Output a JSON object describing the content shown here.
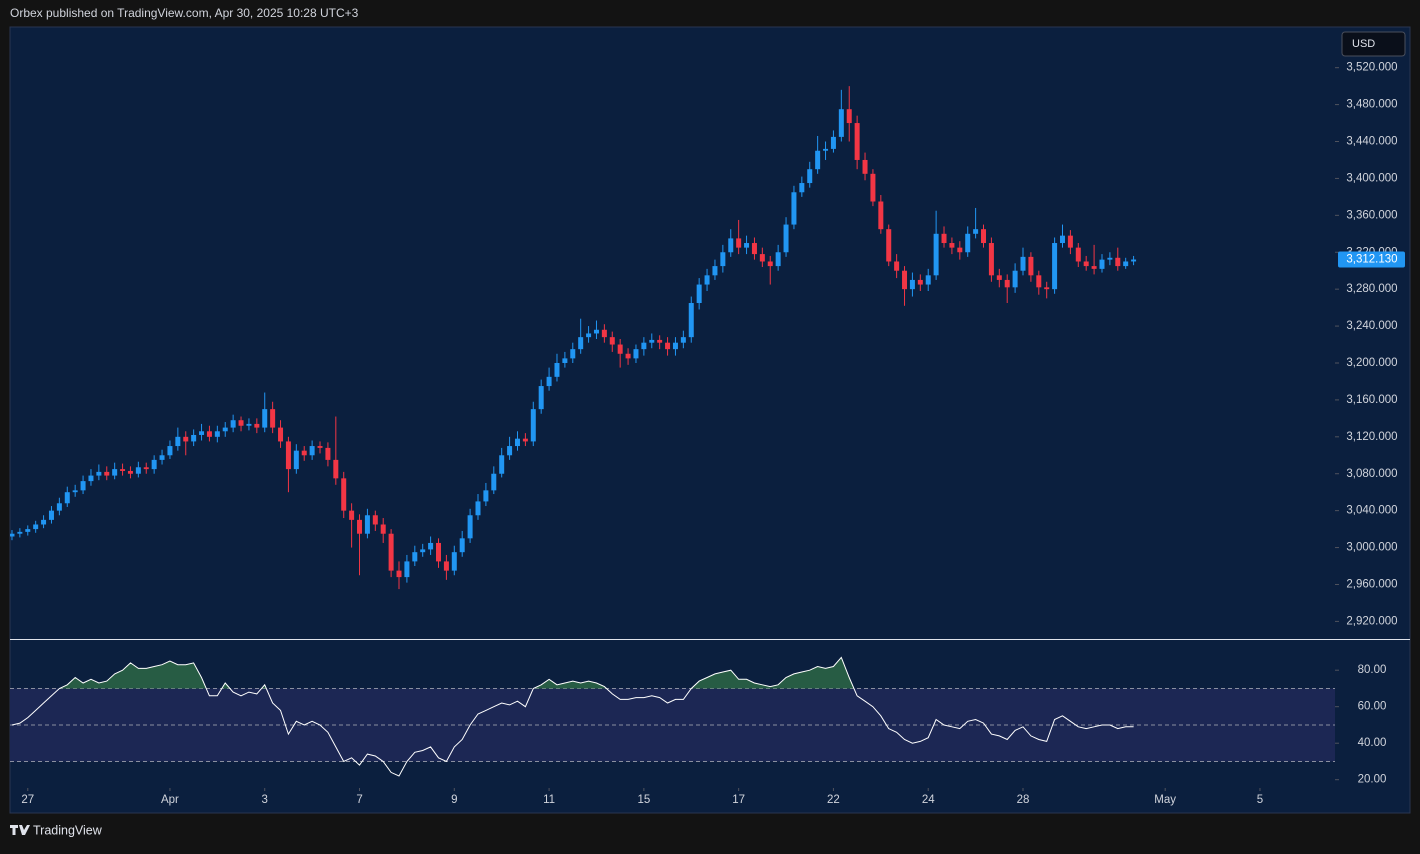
{
  "header": {
    "publisher_line": "Orbex published on TradingView.com, Apr 30, 2025 10:28 UTC+3",
    "currency": "USD",
    "brand": "TradingView"
  },
  "chart_data": [
    {
      "type": "candlestick",
      "up_color": "#2196f3",
      "down_color": "#f23645",
      "ylim": [
        2902,
        3563
      ],
      "yticks": [
        {
          "value": 2920,
          "label": "2,920.000"
        },
        {
          "value": 2960,
          "label": "2,960.000"
        },
        {
          "value": 3000,
          "label": "3,000.000"
        },
        {
          "value": 3040,
          "label": "3,040.000"
        },
        {
          "value": 3080,
          "label": "3,080.000"
        },
        {
          "value": 3120,
          "label": "3,120.000"
        },
        {
          "value": 3160,
          "label": "3,160.000"
        },
        {
          "value": 3200,
          "label": "3,200.000"
        },
        {
          "value": 3240,
          "label": "3,240.000"
        },
        {
          "value": 3280,
          "label": "3,280.000"
        },
        {
          "value": 3320,
          "label": "3,320.000"
        },
        {
          "value": 3360,
          "label": "3,360.000"
        },
        {
          "value": 3400,
          "label": "3,400.000"
        },
        {
          "value": 3440,
          "label": "3,440.000"
        },
        {
          "value": 3480,
          "label": "3,480.000"
        },
        {
          "value": 3520,
          "label": "3,520.000"
        }
      ],
      "xlim": [
        -0.25,
        167.5
      ],
      "xticks": [
        {
          "value": 2,
          "label": "27"
        },
        {
          "value": 20,
          "label": "Apr"
        },
        {
          "value": 32,
          "label": "3"
        },
        {
          "value": 44,
          "label": "7"
        },
        {
          "value": 56,
          "label": "9"
        },
        {
          "value": 68,
          "label": "11"
        },
        {
          "value": 80,
          "label": "15"
        },
        {
          "value": 92,
          "label": "17"
        },
        {
          "value": 104,
          "label": "22"
        },
        {
          "value": 116,
          "label": "24"
        },
        {
          "value": 128,
          "label": "28"
        },
        {
          "value": 146,
          "label": "May"
        },
        {
          "value": 158,
          "label": "5"
        }
      ],
      "last_price": {
        "value": 3312.13,
        "label": "3,312.130"
      },
      "open": [
        3012,
        3015,
        3017,
        3020,
        3025,
        3030,
        3040,
        3048,
        3060,
        3062,
        3072,
        3078,
        3082,
        3078,
        3085,
        3083,
        3080,
        3087,
        3085,
        3095,
        3100,
        3110,
        3120,
        3115,
        3122,
        3126,
        3120,
        3126,
        3130,
        3138,
        3132,
        3134,
        3130,
        3150,
        3130,
        3115,
        3085,
        3105,
        3100,
        3110,
        3108,
        3095,
        3075,
        3040,
        3030,
        3015,
        3035,
        3025,
        3015,
        2975,
        2968,
        2985,
        2995,
        2998,
        3005,
        2985,
        2975,
        2995,
        3010,
        3035,
        3050,
        3062,
        3080,
        3100,
        3110,
        3118,
        3115,
        3150,
        3175,
        3185,
        3200,
        3205,
        3215,
        3228,
        3232,
        3236,
        3228,
        3220,
        3210,
        3205,
        3215,
        3222,
        3225,
        3222,
        3215,
        3222,
        3228,
        3265,
        3285,
        3295,
        3305,
        3320,
        3335,
        3325,
        3330,
        3318,
        3310,
        3305,
        3320,
        3350,
        3385,
        3395,
        3410,
        3430,
        3432,
        3445,
        3475,
        3460,
        3420,
        3405,
        3375,
        3345,
        3310,
        3300,
        3280,
        3290,
        3285,
        3295,
        3340,
        3330,
        3325,
        3320,
        3340,
        3345,
        3330,
        3295,
        3290,
        3282,
        3300,
        3315,
        3295,
        3282,
        3280,
        3330,
        3338,
        3325,
        3310,
        3305,
        3302,
        3312,
        3314,
        3305,
        3310
      ],
      "high": [
        3019,
        3021,
        3024,
        3029,
        3035,
        3045,
        3054,
        3066,
        3068,
        3078,
        3085,
        3090,
        3088,
        3092,
        3091,
        3088,
        3093,
        3092,
        3100,
        3106,
        3116,
        3130,
        3126,
        3128,
        3134,
        3132,
        3132,
        3136,
        3144,
        3142,
        3140,
        3140,
        3168,
        3158,
        3138,
        3120,
        3112,
        3110,
        3116,
        3115,
        3114,
        3142,
        3082,
        3048,
        3036,
        3042,
        3040,
        3032,
        3020,
        2985,
        2992,
        3002,
        3004,
        3012,
        3010,
        2992,
        3002,
        3018,
        3042,
        3058,
        3070,
        3088,
        3108,
        3120,
        3126,
        3124,
        3158,
        3182,
        3195,
        3210,
        3212,
        3222,
        3248,
        3240,
        3246,
        3242,
        3234,
        3226,
        3216,
        3220,
        3228,
        3232,
        3230,
        3228,
        3228,
        3235,
        3272,
        3292,
        3302,
        3312,
        3328,
        3345,
        3355,
        3338,
        3336,
        3325,
        3316,
        3328,
        3358,
        3392,
        3402,
        3418,
        3446,
        3440,
        3452,
        3496,
        3500,
        3468,
        3428,
        3410,
        3382,
        3350,
        3318,
        3305,
        3298,
        3296,
        3302,
        3365,
        3348,
        3336,
        3332,
        3348,
        3368,
        3350,
        3336,
        3302,
        3296,
        3308,
        3325,
        3320,
        3300,
        3288,
        3336,
        3350,
        3344,
        3330,
        3316,
        3328,
        3318,
        3320,
        3325,
        3314,
        3316
      ],
      "low": [
        3008,
        3011,
        3013,
        3016,
        3021,
        3026,
        3035,
        3044,
        3055,
        3058,
        3067,
        3073,
        3073,
        3074,
        3078,
        3075,
        3076,
        3080,
        3080,
        3090,
        3096,
        3105,
        3100,
        3110,
        3116,
        3115,
        3114,
        3120,
        3125,
        3126,
        3127,
        3124,
        3125,
        3124,
        3108,
        3060,
        3080,
        3094,
        3095,
        3102,
        3088,
        3068,
        3032,
        3000,
        2970,
        3010,
        3018,
        3005,
        2968,
        2955,
        2962,
        2980,
        2990,
        2992,
        2978,
        2965,
        2970,
        2990,
        3005,
        3030,
        3045,
        3058,
        3076,
        3095,
        3105,
        3110,
        3110,
        3145,
        3170,
        3180,
        3195,
        3200,
        3210,
        3222,
        3226,
        3222,
        3212,
        3195,
        3198,
        3200,
        3208,
        3216,
        3215,
        3208,
        3208,
        3216,
        3222,
        3258,
        3278,
        3290,
        3298,
        3315,
        3318,
        3318,
        3312,
        3304,
        3285,
        3300,
        3315,
        3345,
        3380,
        3390,
        3405,
        3420,
        3428,
        3440,
        3440,
        3410,
        3398,
        3370,
        3340,
        3305,
        3292,
        3262,
        3272,
        3278,
        3278,
        3290,
        3325,
        3318,
        3312,
        3315,
        3335,
        3325,
        3288,
        3282,
        3265,
        3276,
        3295,
        3288,
        3274,
        3270,
        3275,
        3325,
        3318,
        3304,
        3300,
        3296,
        3298,
        3306,
        3300,
        3302,
        3306
      ],
      "close": [
        3015,
        3017,
        3020,
        3025,
        3030,
        3040,
        3048,
        3060,
        3062,
        3072,
        3078,
        3082,
        3078,
        3085,
        3083,
        3080,
        3087,
        3085,
        3095,
        3100,
        3110,
        3120,
        3115,
        3122,
        3126,
        3120,
        3126,
        3130,
        3138,
        3132,
        3134,
        3130,
        3150,
        3130,
        3115,
        3085,
        3105,
        3100,
        3110,
        3108,
        3095,
        3075,
        3040,
        3030,
        3015,
        3035,
        3025,
        3015,
        2975,
        2968,
        2985,
        2995,
        2998,
        3005,
        2985,
        2975,
        2995,
        3010,
        3035,
        3050,
        3062,
        3080,
        3100,
        3110,
        3118,
        3115,
        3150,
        3175,
        3185,
        3200,
        3205,
        3215,
        3228,
        3232,
        3236,
        3228,
        3220,
        3210,
        3205,
        3215,
        3222,
        3225,
        3222,
        3215,
        3222,
        3228,
        3265,
        3285,
        3295,
        3305,
        3320,
        3335,
        3325,
        3330,
        3318,
        3310,
        3305,
        3320,
        3350,
        3385,
        3395,
        3410,
        3430,
        3432,
        3445,
        3475,
        3460,
        3420,
        3405,
        3375,
        3345,
        3310,
        3300,
        3280,
        3290,
        3285,
        3295,
        3340,
        3330,
        3325,
        3320,
        3340,
        3345,
        3330,
        3295,
        3290,
        3282,
        3300,
        3315,
        3295,
        3282,
        3280,
        3330,
        3338,
        3325,
        3310,
        3305,
        3302,
        3312,
        3314,
        3305,
        3310,
        3312.13
      ]
    },
    {
      "type": "line",
      "color": "#ffffff",
      "overbought_fill": "#2e6b46",
      "band_fill": "#1c2754",
      "ylim": [
        16,
        96
      ],
      "yticks": [
        {
          "value": 20,
          "label": "20.00"
        },
        {
          "value": 40,
          "label": "40.00"
        },
        {
          "value": 60,
          "label": "60.00"
        },
        {
          "value": 80,
          "label": "80.00"
        }
      ],
      "bands": [
        30,
        50,
        70
      ],
      "xlim": [
        -0.25,
        167.5
      ],
      "values": [
        50,
        51,
        54,
        58,
        62,
        66,
        70,
        72,
        76,
        73,
        75,
        73,
        74,
        78,
        80,
        84,
        81,
        81,
        82,
        83,
        85,
        83,
        83,
        84,
        76,
        66,
        66,
        73,
        68,
        66,
        68,
        67,
        72,
        62,
        58,
        45,
        52,
        50,
        52,
        50,
        46,
        38,
        30,
        32,
        28,
        34,
        33,
        30,
        24,
        22,
        30,
        35,
        36,
        38,
        32,
        30,
        38,
        42,
        50,
        56,
        58,
        60,
        62,
        61,
        63,
        60,
        70,
        72,
        75,
        72,
        73,
        74,
        73,
        74,
        73,
        71,
        67,
        64,
        64,
        65,
        65,
        66,
        65,
        62,
        64,
        64,
        70,
        74,
        76,
        78,
        79,
        80,
        75,
        75,
        73,
        72,
        71,
        72,
        76,
        78,
        79,
        80,
        82,
        81,
        82,
        87,
        76,
        66,
        63,
        60,
        55,
        48,
        46,
        42,
        40,
        41,
        43,
        53,
        50,
        49,
        48,
        52,
        53,
        51,
        45,
        44,
        42,
        47,
        49,
        44,
        42,
        41,
        53,
        55,
        52,
        49,
        48,
        49,
        50,
        50,
        48,
        49,
        49
      ]
    }
  ]
}
